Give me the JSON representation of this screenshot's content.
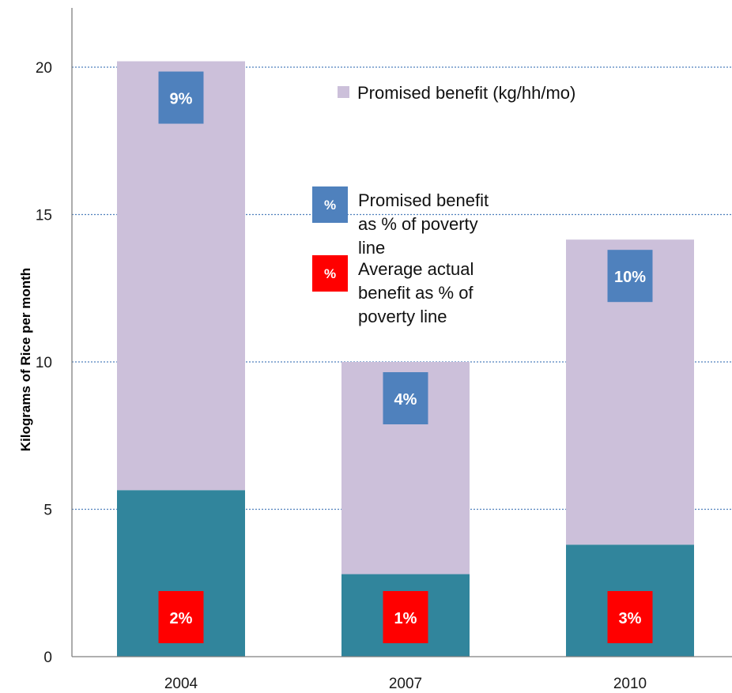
{
  "chart_data": {
    "type": "bar",
    "stacked": true,
    "categories": [
      "2004",
      "2007",
      "2010"
    ],
    "series": [
      {
        "name": "",
        "values": [
          5.65,
          2.8,
          3.8
        ],
        "color": "#31859c"
      },
      {
        "name": "Promised benefit (kg/hh/mo)",
        "values": [
          14.55,
          7.2,
          10.35
        ],
        "color": "#ccc0da"
      }
    ],
    "totals": [
      20.2,
      10.0,
      14.15
    ],
    "ylabel": "Kilograms of Rice per month",
    "xlabel": "",
    "ylim": [
      0,
      22
    ],
    "yticks": [
      0,
      5,
      10,
      15,
      20
    ],
    "grid": true,
    "promised_pct_labels": [
      "9%",
      "4%",
      "10%"
    ],
    "actual_pct_labels": [
      "2%",
      "1%",
      "3%"
    ],
    "legend": {
      "position": "inside-top-right",
      "items": [
        {
          "symbol": "",
          "color": "#ccc0da",
          "label_lines": [
            "Promised benefit (kg/hh/mo)"
          ]
        },
        {
          "symbol": "%",
          "color": "#4f81bd",
          "label_lines": [
            "Promised benefit",
            "as % of poverty",
            "line"
          ]
        },
        {
          "symbol": "%",
          "color": "#ff0000",
          "label_lines": [
            "Average actual",
            "benefit as % of",
            "poverty line"
          ]
        }
      ]
    },
    "colors": {
      "actual": "#31859c",
      "promised": "#ccc0da",
      "promised_pct_badge": "#4f81bd",
      "actual_pct_badge": "#ff0000",
      "gridline": "#4f81bd",
      "axis": "#7f7f7f"
    }
  }
}
